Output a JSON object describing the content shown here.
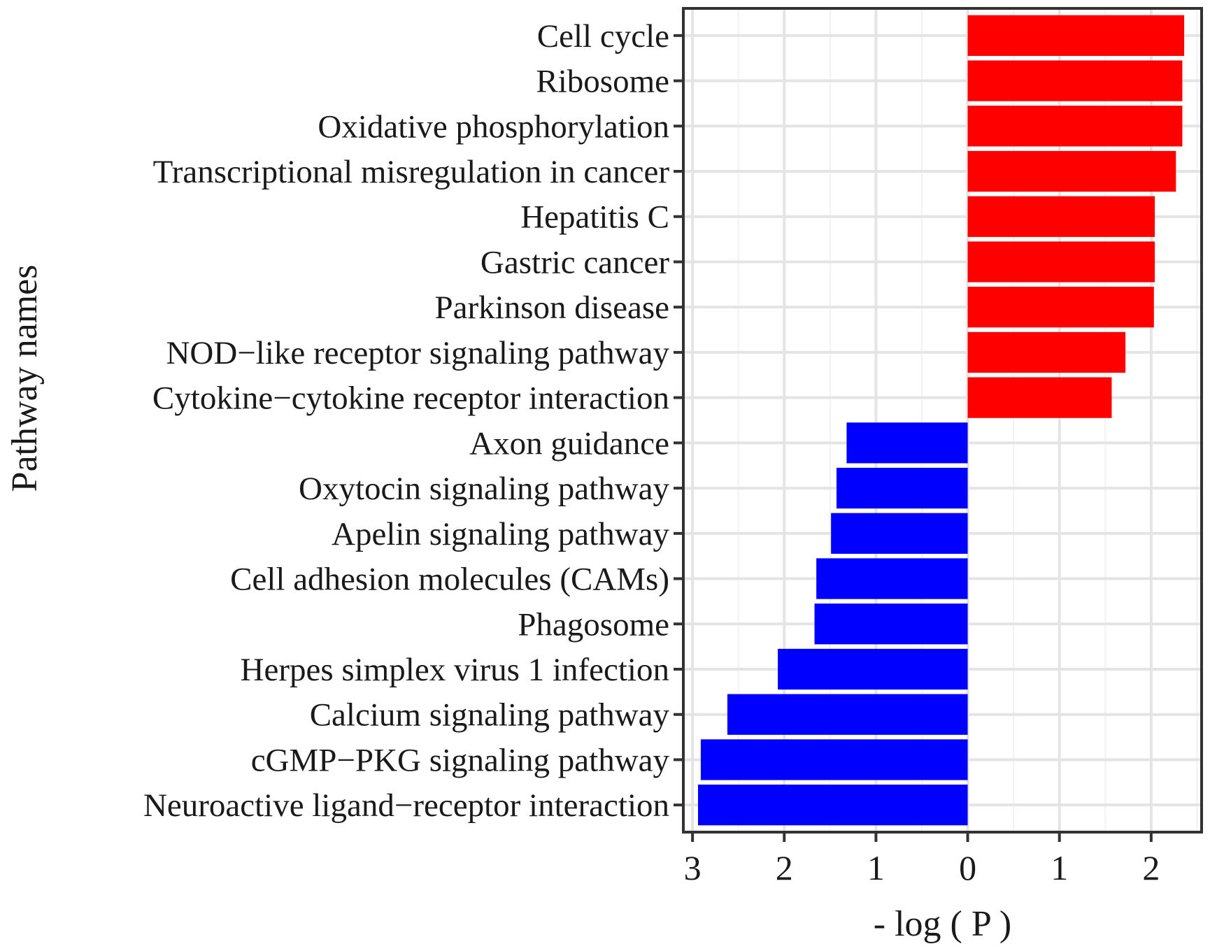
{
  "chart_data": {
    "type": "bar",
    "orientation": "horizontal",
    "title": "",
    "xlabel": "- log ( P )",
    "ylabel": "Pathway names",
    "xlim": [
      -3.1,
      2.55
    ],
    "x_ticks": [
      -3,
      -2,
      -1,
      0,
      1,
      2
    ],
    "x_tick_labels": [
      "3",
      "2",
      "1",
      "0",
      "1",
      "2"
    ],
    "grid": true,
    "legend": "none",
    "colors": {
      "up": "#ff0000",
      "down": "#0000ff",
      "panel_border": "#333333",
      "grid": "#e4e4e4"
    },
    "categories": [
      "Cell cycle",
      "Ribosome",
      "Oxidative phosphorylation",
      "Transcriptional misregulation in cancer",
      "Hepatitis C",
      "Gastric cancer",
      "Parkinson disease",
      "NOD−like receptor signaling pathway",
      "Cytokine−cytokine receptor interaction",
      "Axon guidance",
      "Oxytocin signaling pathway",
      "Apelin signaling pathway",
      "Cell adhesion molecules (CAMs)",
      "Phagosome",
      "Herpes simplex virus 1 infection",
      "Calcium signaling pathway",
      "cGMP−PKG signaling pathway",
      "Neuroactive ligand−receptor interaction"
    ],
    "values": [
      2.36,
      2.34,
      2.34,
      2.27,
      2.04,
      2.04,
      2.03,
      1.72,
      1.57,
      -1.32,
      -1.43,
      -1.49,
      -1.65,
      -1.67,
      -2.07,
      -2.62,
      -2.91,
      -2.94
    ]
  }
}
